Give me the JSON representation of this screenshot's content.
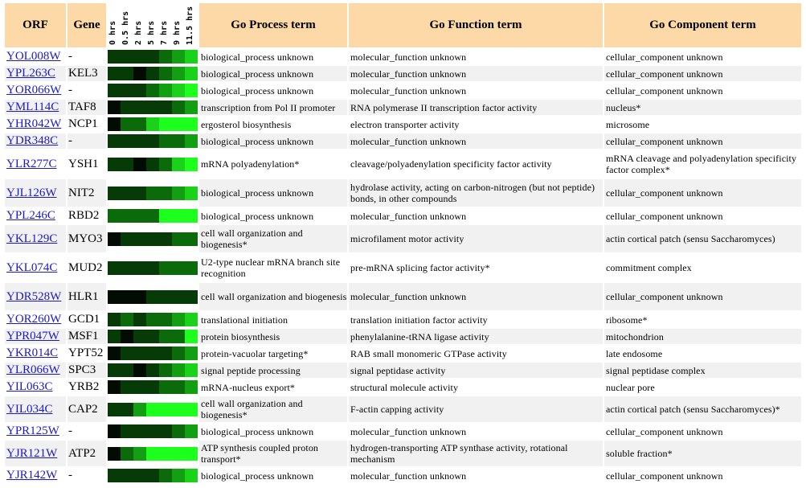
{
  "headers": {
    "orf": "ORF",
    "gene": "Gene",
    "process": "Go Process term",
    "function": "Go Function term",
    "component": "Go Component term",
    "times": [
      "0 hrs",
      "0.5 hrs",
      "2 hrs",
      "5 hrs",
      "7 hrs",
      "9 hrs",
      "11.5 hrs"
    ]
  },
  "heat_colors": {
    "0": "#020c02",
    "1": "#063a06",
    "2": "#0b6b0b",
    "3": "#12a012",
    "4": "#1ad21a",
    "5": "#1dff1d"
  },
  "rows": [
    {
      "orf": "YOL008W",
      "gene": "-",
      "heat": [
        1,
        1,
        1,
        1,
        2,
        3,
        4
      ],
      "process": "biological_process unknown",
      "function": "molecular_function unknown",
      "component": "cellular_component unknown"
    },
    {
      "orf": "YPL263C",
      "gene": "KEL3",
      "heat": [
        1,
        1,
        0,
        1,
        2,
        3,
        4
      ],
      "process": "biological_process unknown",
      "function": "molecular_function unknown",
      "component": "cellular_component unknown"
    },
    {
      "orf": "YOR066W",
      "gene": "-",
      "heat": [
        1,
        1,
        1,
        2,
        3,
        4,
        5
      ],
      "process": "biological_process unknown",
      "function": "molecular_function unknown",
      "component": "cellular_component unknown"
    },
    {
      "orf": "YML114C",
      "gene": "TAF8",
      "heat": [
        0,
        1,
        1,
        1,
        1,
        2,
        3
      ],
      "process": "transcription from Pol II promoter",
      "function": "RNA polymerase II transcription factor activity",
      "component": "nucleus*"
    },
    {
      "orf": "YHR042W",
      "gene": "NCP1",
      "heat": [
        0,
        2,
        2,
        4,
        5,
        5,
        5
      ],
      "process": "ergosterol biosynthesis",
      "function": "electron transporter activity",
      "component": "microsome"
    },
    {
      "orf": "YDR348C",
      "gene": "-",
      "heat": [
        1,
        1,
        1,
        1,
        2,
        2,
        3
      ],
      "process": "biological_process unknown",
      "function": "molecular_function unknown",
      "component": "cellular_component unknown"
    },
    {
      "orf": "YLR277C",
      "gene": "YSH1",
      "heat": [
        1,
        1,
        0,
        1,
        2,
        4,
        5
      ],
      "process": "mRNA polyadenylation*",
      "function": "cleavage/polyadenylation specificity factor activity",
      "component": "mRNA cleavage and polyadenylation specificity factor complex*"
    },
    {
      "orf": "YJL126W",
      "gene": "NIT2",
      "heat": [
        1,
        1,
        1,
        2,
        2,
        3,
        4
      ],
      "process": "biological_process unknown",
      "function": "hydrolase activity, acting on carbon-nitrogen (but not peptide) bonds, in other compounds",
      "component": "cellular_component unknown"
    },
    {
      "orf": "YPL246C",
      "gene": "RBD2",
      "heat": [
        2,
        2,
        2,
        2,
        5,
        5,
        5
      ],
      "process": "biological_process unknown",
      "function": "molecular_function unknown",
      "component": "cellular_component unknown"
    },
    {
      "orf": "YKL129C",
      "gene": "MYO3",
      "heat": [
        0,
        1,
        1,
        1,
        1,
        2,
        2
      ],
      "process": "cell wall organization and biogenesis*",
      "function": "microfilament motor activity",
      "component": "actin cortical patch (sensu Saccharomyces)"
    },
    {
      "orf": "YKL074C",
      "gene": "MUD2",
      "heat": [
        1,
        1,
        1,
        1,
        2,
        2,
        2
      ],
      "process": "U2-type nuclear mRNA branch site recognition",
      "function": "pre-mRNA splicing factor activity*",
      "component": "commitment complex"
    },
    {
      "orf": "YDR528W",
      "gene": "HLR1",
      "heat": [
        0,
        0,
        0,
        1,
        1,
        1,
        1
      ],
      "process": "cell wall organization and biogenesis",
      "function": "molecular_function unknown",
      "component": "cellular_component unknown"
    },
    {
      "orf": "YOR260W",
      "gene": "GCD1",
      "heat": [
        1,
        2,
        1,
        2,
        2,
        3,
        4
      ],
      "process": "translational initiation",
      "function": "translation initiation factor activity",
      "component": "ribosome*"
    },
    {
      "orf": "YPR047W",
      "gene": "MSF1",
      "heat": [
        1,
        0,
        1,
        1,
        2,
        2,
        5
      ],
      "process": "protein biosynthesis",
      "function": "phenylalanine-tRNA ligase activity",
      "component": "mitochondrion"
    },
    {
      "orf": "YKR014C",
      "gene": "YPT52",
      "heat": [
        0,
        1,
        1,
        1,
        1,
        2,
        3
      ],
      "process": "protein-vacuolar targeting*",
      "function": "RAB small monomeric GTPase activity",
      "component": "late endosome"
    },
    {
      "orf": "YLR066W",
      "gene": "SPC3",
      "heat": [
        1,
        1,
        0,
        1,
        2,
        3,
        4
      ],
      "process": "signal peptide processing",
      "function": "signal peptidase activity",
      "component": "signal peptidase complex"
    },
    {
      "orf": "YIL063C",
      "gene": "YRB2",
      "heat": [
        0,
        1,
        1,
        1,
        2,
        2,
        3
      ],
      "process": "mRNA-nucleus export*",
      "function": "structural molecule activity",
      "component": "nuclear pore"
    },
    {
      "orf": "YIL034C",
      "gene": "CAP2",
      "heat": [
        1,
        1,
        3,
        5,
        5,
        5,
        5
      ],
      "process": "cell wall organization and biogenesis*",
      "function": "F-actin capping activity",
      "component": "actin cortical patch (sensu Saccharomyces)*"
    },
    {
      "orf": "YPR125W",
      "gene": "-",
      "heat": [
        0,
        1,
        1,
        1,
        1,
        2,
        3
      ],
      "process": "biological_process unknown",
      "function": "molecular_function unknown",
      "component": "cellular_component unknown"
    },
    {
      "orf": "YJR121W",
      "gene": "ATP2",
      "heat": [
        0,
        2,
        3,
        5,
        5,
        5,
        5
      ],
      "process": "ATP synthesis coupled proton transport*",
      "function": "hydrogen-transporting ATP synthase activity, rotational mechanism",
      "component": "soluble fraction*"
    },
    {
      "orf": "YJR142W",
      "gene": "-",
      "heat": [
        1,
        1,
        1,
        1,
        2,
        3,
        4
      ],
      "process": "biological_process unknown",
      "function": "molecular_function unknown",
      "component": "cellular_component unknown"
    }
  ]
}
